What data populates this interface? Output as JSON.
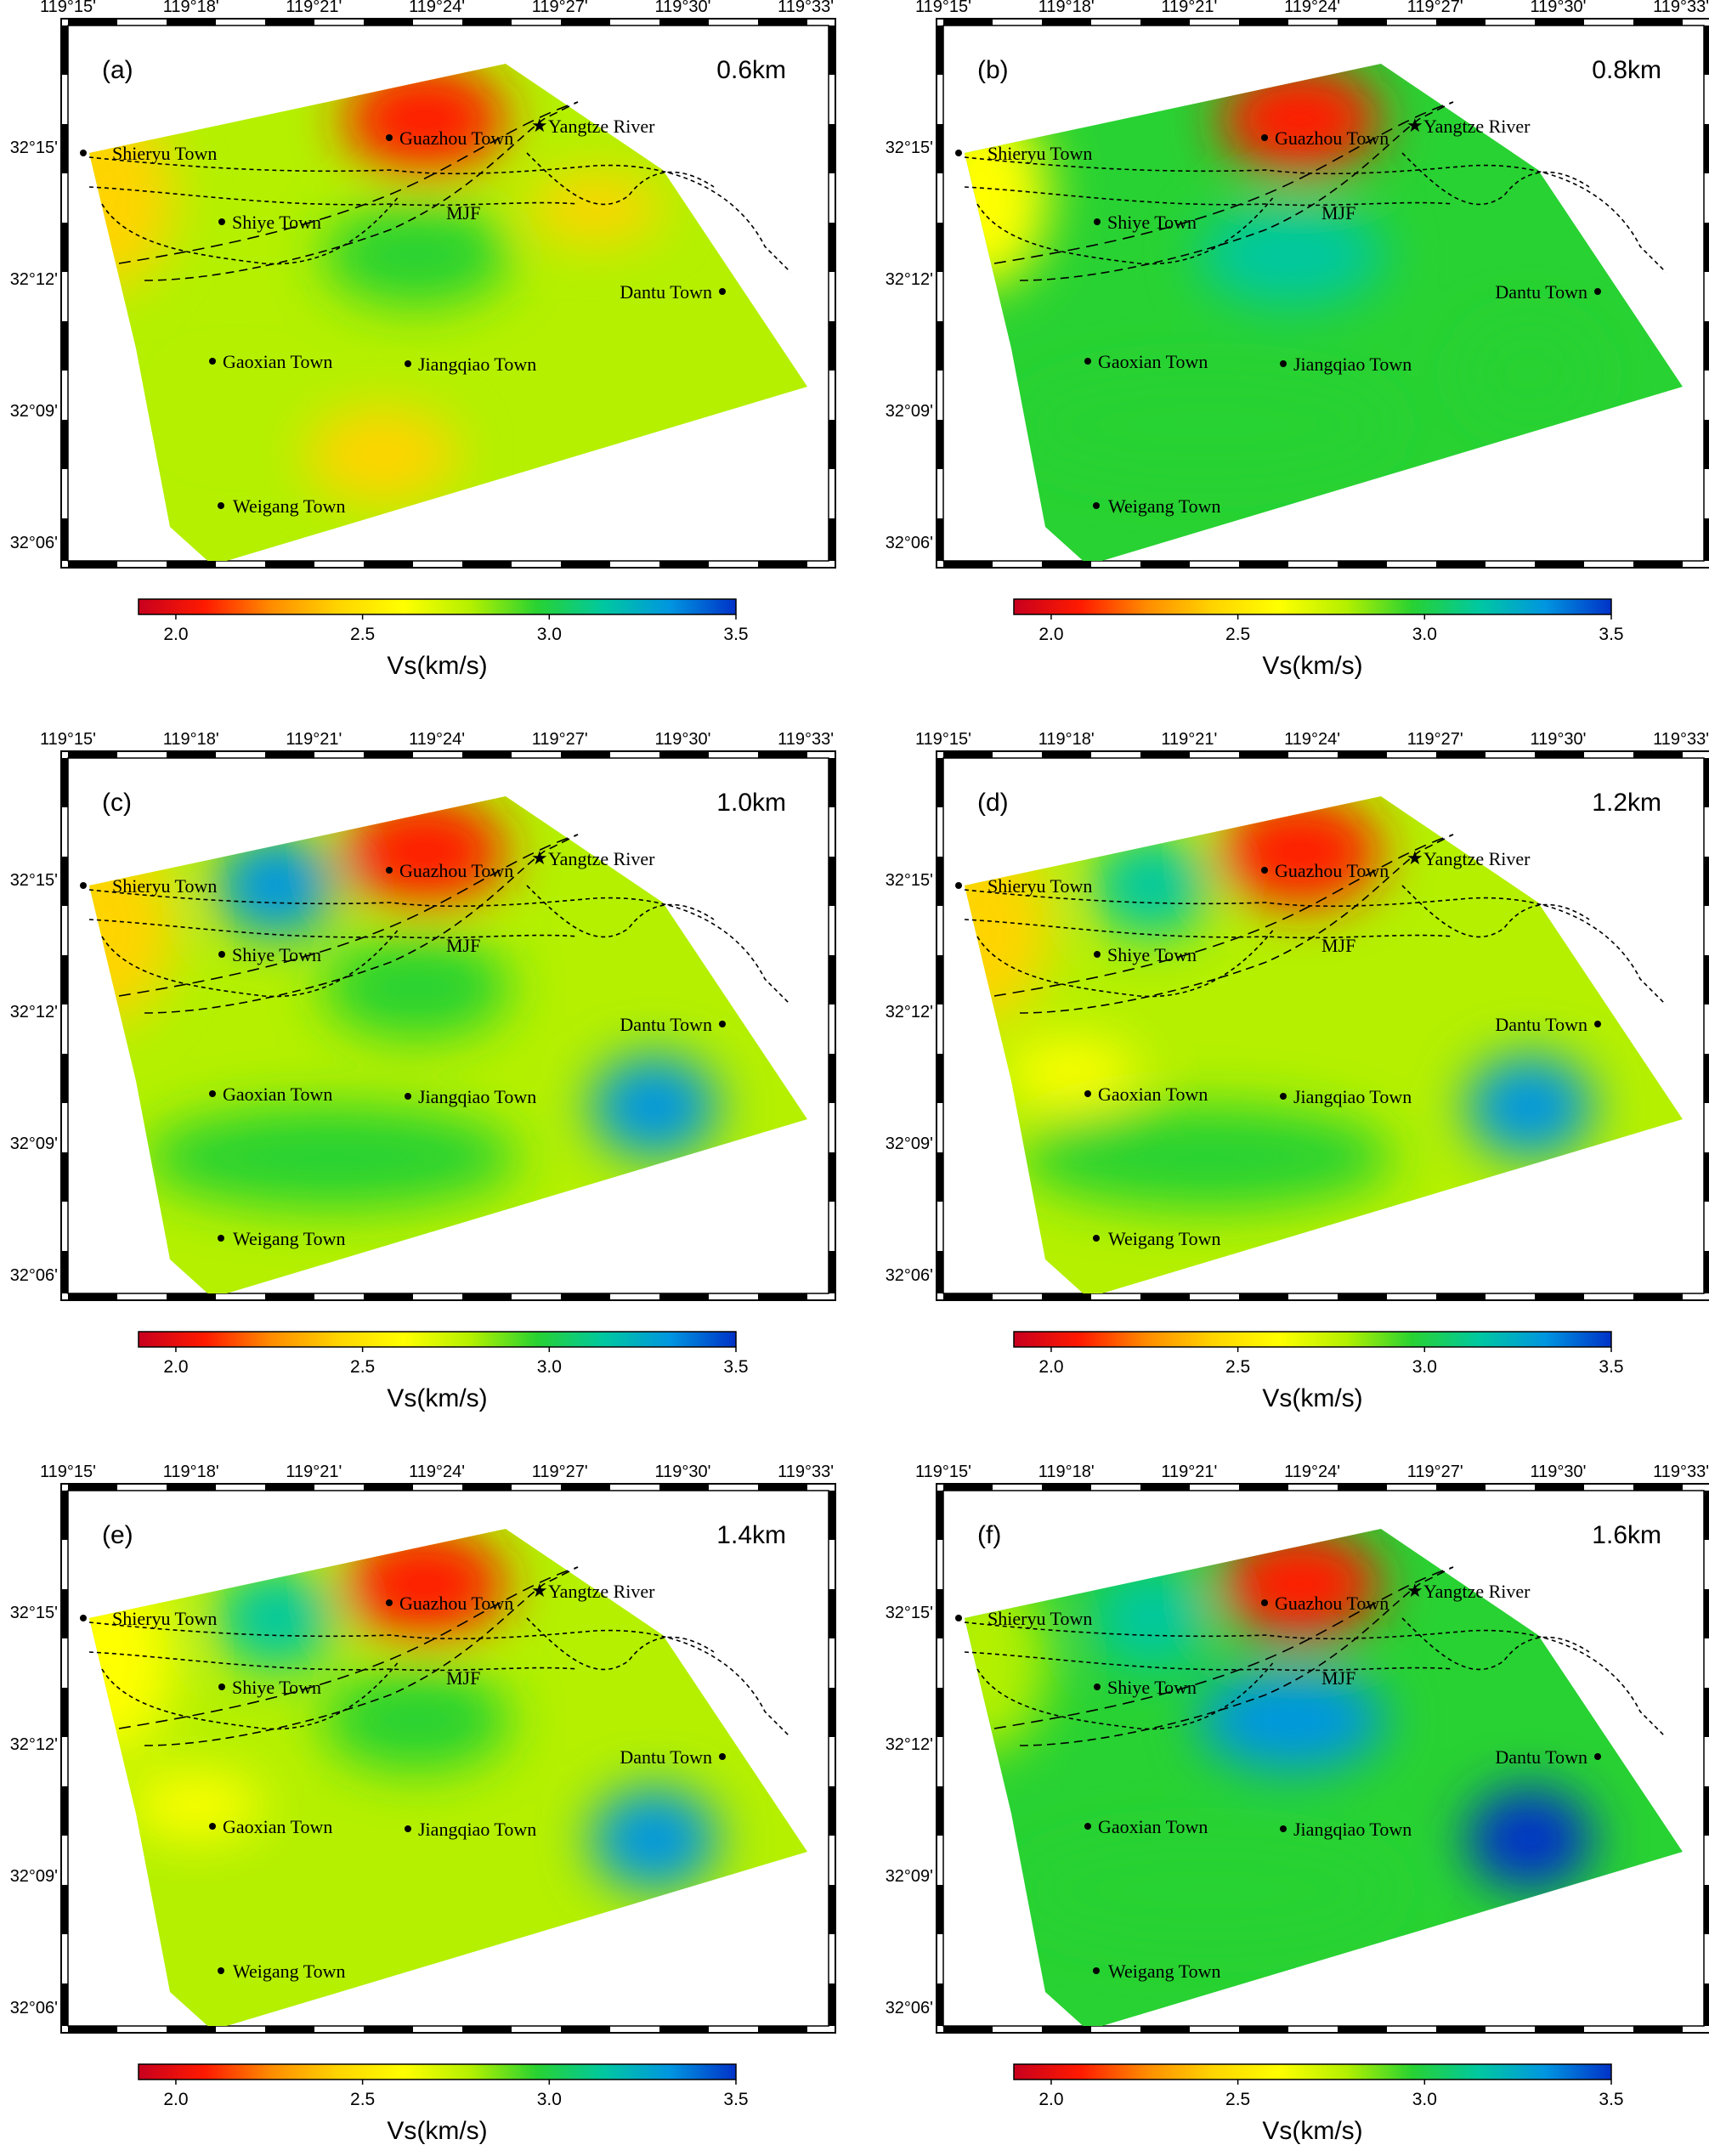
{
  "figure": {
    "colorbar": {
      "label": "Vs(km/s)",
      "ticks": [
        "2.0",
        "2.5",
        "3.0",
        "3.5"
      ],
      "range": [
        1.9,
        3.5
      ],
      "colors": [
        "#c8001e",
        "#ff1a00",
        "#ff8c00",
        "#ffd400",
        "#ffff00",
        "#b4f000",
        "#28d232",
        "#00c8a0",
        "#0096e0",
        "#0032c8"
      ]
    },
    "lon_ticks": [
      "119°15'",
      "119°18'",
      "119°21'",
      "119°24'",
      "119°27'",
      "119°30'",
      "119°33'"
    ],
    "lat_ticks": [
      "32°15'",
      "32°12'",
      "32°09'",
      "32°06'"
    ],
    "annotations": {
      "river": "Yangtze River",
      "fault": "MJF"
    },
    "towns": [
      {
        "key": "shieryu",
        "name": "Shieryu Town"
      },
      {
        "key": "guazhou",
        "name": "Guazhou Town"
      },
      {
        "key": "shiye",
        "name": "Shiye Town"
      },
      {
        "key": "dantu",
        "name": "Dantu Town"
      },
      {
        "key": "gaoxian",
        "name": "Gaoxian Town"
      },
      {
        "key": "jiangqiao",
        "name": "Jiangqiao Town"
      },
      {
        "key": "weigang",
        "name": "Weigang Town"
      }
    ],
    "panels": [
      {
        "label": "(a)",
        "depth": "0.6km",
        "background_velocity": 2.75,
        "anomalies": [
          {
            "location": "Guazhou",
            "vs": 2.0
          },
          {
            "location": "Shieryu",
            "vs": 2.45
          },
          {
            "location": "east of MJF",
            "vs": 2.45
          },
          {
            "location": "south of MJF",
            "vs": 2.95
          },
          {
            "location": "south of Weigang",
            "vs": 2.45
          },
          {
            "location": "northeast of Weigang",
            "vs": 2.85
          }
        ]
      },
      {
        "label": "(b)",
        "depth": "0.8km",
        "background_velocity": 2.9,
        "anomalies": [
          {
            "location": "Guazhou",
            "vs": 2.05
          },
          {
            "location": "Shieryu",
            "vs": 2.55
          },
          {
            "location": "south of MJF",
            "vs": 3.15
          },
          {
            "location": "east of Jiangqiao",
            "vs": 3.0
          },
          {
            "location": "south of Gaoxian",
            "vs": 3.0
          }
        ]
      },
      {
        "label": "(c)",
        "depth": "1.0km",
        "background_velocity": 2.8,
        "anomalies": [
          {
            "location": "Guazhou",
            "vs": 2.0
          },
          {
            "location": "north of Shiye",
            "vs": 3.25
          },
          {
            "location": "Shieryu",
            "vs": 2.45
          },
          {
            "location": "east of Jiangqiao",
            "vs": 3.3
          },
          {
            "location": "south of Gaoxian",
            "vs": 3.0
          },
          {
            "location": "south of MJF",
            "vs": 3.0
          }
        ]
      },
      {
        "label": "(d)",
        "depth": "1.2km",
        "background_velocity": 2.8,
        "anomalies": [
          {
            "location": "Guazhou",
            "vs": 2.0
          },
          {
            "location": "north of Shiye",
            "vs": 3.2
          },
          {
            "location": "Shieryu",
            "vs": 2.5
          },
          {
            "location": "east of Jiangqiao",
            "vs": 3.3
          },
          {
            "location": "south of Gaoxian",
            "vs": 3.0
          },
          {
            "location": "Gaoxian",
            "vs": 2.6
          }
        ]
      },
      {
        "label": "(e)",
        "depth": "1.4km",
        "background_velocity": 2.85,
        "anomalies": [
          {
            "location": "Guazhou",
            "vs": 2.0
          },
          {
            "location": "north of Shiye",
            "vs": 3.2
          },
          {
            "location": "Shieryu",
            "vs": 2.55
          },
          {
            "location": "east of Jiangqiao",
            "vs": 3.35
          },
          {
            "location": "south of MJF",
            "vs": 3.05
          },
          {
            "location": "Gaoxian",
            "vs": 2.65
          }
        ]
      },
      {
        "label": "(f)",
        "depth": "1.6km",
        "background_velocity": 2.95,
        "anomalies": [
          {
            "location": "Guazhou",
            "vs": 2.0
          },
          {
            "location": "north of Shiye",
            "vs": 3.15
          },
          {
            "location": "south of MJF",
            "vs": 3.35
          },
          {
            "location": "east of Jiangqiao",
            "vs": 3.45
          },
          {
            "location": "Shieryu",
            "vs": 2.7
          },
          {
            "location": "south of Gaoxian",
            "vs": 3.05
          }
        ]
      }
    ]
  }
}
